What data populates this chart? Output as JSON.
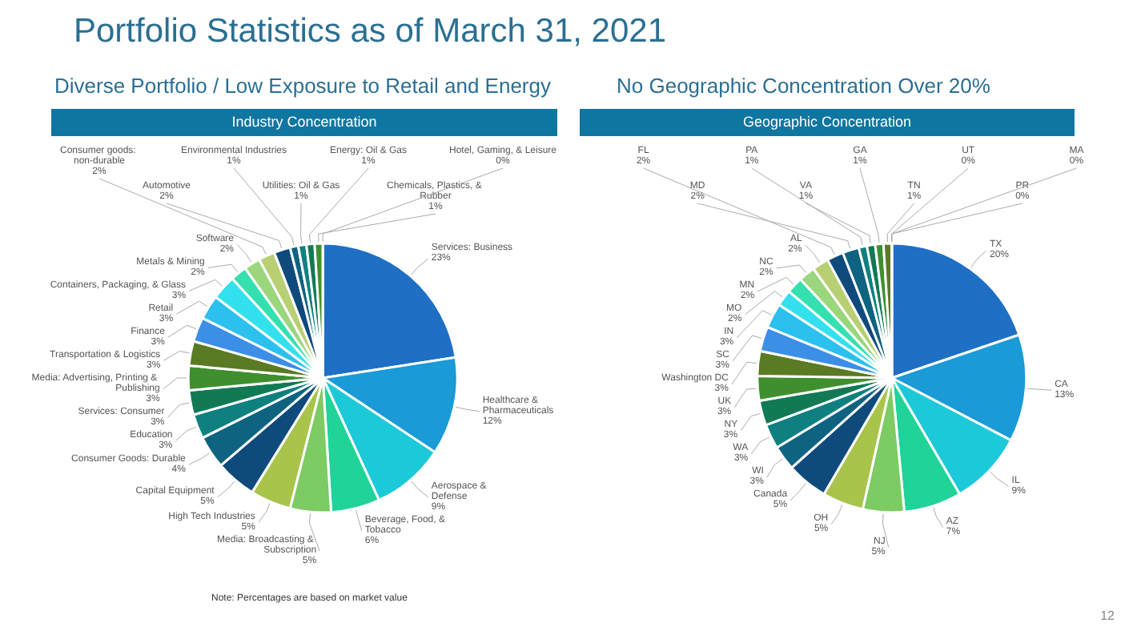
{
  "chart_data": [
    {
      "type": "pie",
      "title": "Industry Concentration",
      "subtitle": "Diverse Portfolio / Low Exposure to Retail and Energy",
      "annotations": [
        "Portfolio Statistics as of March 31, 2021",
        "Note: Percentages are based on market value",
        "12"
      ],
      "categories": [
        "Services: Business",
        "Healthcare & Pharmaceuticals",
        "Aerospace & Defense",
        "Beverage, Food, & Tobacco",
        "Media: Broadcasting & Subscription",
        "High Tech Industries",
        "Capital Equipment",
        "Consumer Goods: Durable",
        "Education",
        "Services: Consumer",
        "Media: Advertising, Printing & Publishing",
        "Transportation & Logistics",
        "Finance",
        "Retail",
        "Containers, Packaging, & Glass",
        "Metals & Mining",
        "Software",
        "Consumer goods: non-durable",
        "Automotive",
        "Environmental Industries",
        "Utilities: Oil & Gas",
        "Energy: Oil & Gas",
        "Chemicals, Plastics, & Rubber",
        "Hotel, Gaming, & Leisure"
      ],
      "values": [
        23,
        12,
        9,
        6,
        5,
        5,
        5,
        4,
        3,
        3,
        3,
        3,
        3,
        3,
        3,
        2,
        2,
        2,
        2,
        1,
        1,
        1,
        1,
        0
      ],
      "value_labels": [
        "23%",
        "12%",
        "9%",
        "6%",
        "5%",
        "5%",
        "5%",
        "4%",
        "3%",
        "3%",
        "3%",
        "3%",
        "3%",
        "3%",
        "3%",
        "2%",
        "2%",
        "2%",
        "2%",
        "1%",
        "1%",
        "1%",
        "1%",
        "0%"
      ],
      "colors": [
        "#1f6fc5",
        "#1a9ad6",
        "#1cc9d9",
        "#1fd39a",
        "#7ccb63",
        "#a8c44a",
        "#0f4a7c",
        "#0e6380",
        "#0f8080",
        "#117a55",
        "#3f8f2f",
        "#5a7a24",
        "#3b8fe6",
        "#2bc0ee",
        "#33e0ee",
        "#35e0b0",
        "#9bd57c",
        "#b8cf73",
        "#0f4a7c",
        "#0e6380",
        "#0f8080",
        "#117a55",
        "#3f8f2f",
        "#5a7a24"
      ]
    },
    {
      "type": "pie",
      "title": "Geographic Concentration",
      "subtitle": "No Geographic Concentration Over 20%",
      "categories": [
        "TX",
        "CA",
        "IL",
        "AZ",
        "NJ",
        "OH",
        "Canada",
        "WI",
        "WA",
        "NY",
        "UK",
        "Washington DC",
        "SC",
        "IN",
        "MO",
        "MN",
        "NC",
        "AL",
        "FL",
        "MD",
        "PA",
        "VA",
        "GA",
        "TN",
        "UT",
        "PR",
        "MA"
      ],
      "values": [
        20,
        13,
        9,
        7,
        5,
        5,
        5,
        3,
        3,
        3,
        3,
        3,
        3,
        3,
        2,
        2,
        2,
        2,
        2,
        2,
        1,
        1,
        1,
        1,
        0,
        0,
        0
      ],
      "value_labels": [
        "20%",
        "13%",
        "9%",
        "7%",
        "5%",
        "5%",
        "5%",
        "3%",
        "3%",
        "3%",
        "3%",
        "3%",
        "3%",
        "3%",
        "2%",
        "2%",
        "2%",
        "2%",
        "2%",
        "2%",
        "1%",
        "1%",
        "1%",
        "1%",
        "0%",
        "0%",
        "0%"
      ],
      "colors": [
        "#1f6fc5",
        "#1a9ad6",
        "#1cc9d9",
        "#1fd39a",
        "#7ccb63",
        "#a8c44a",
        "#0f4a7c",
        "#0e6380",
        "#0f8080",
        "#117a55",
        "#3f8f2f",
        "#5a7a24",
        "#3b8fe6",
        "#2bc0ee",
        "#33e0ee",
        "#35e0b0",
        "#9bd57c",
        "#b8cf73",
        "#0f4a7c",
        "#0e6380",
        "#0f8080",
        "#117a55",
        "#3f8f2f",
        "#5a7a24",
        "#3b8fe6",
        "#2bc0ee",
        "#33e0ee"
      ]
    }
  ]
}
